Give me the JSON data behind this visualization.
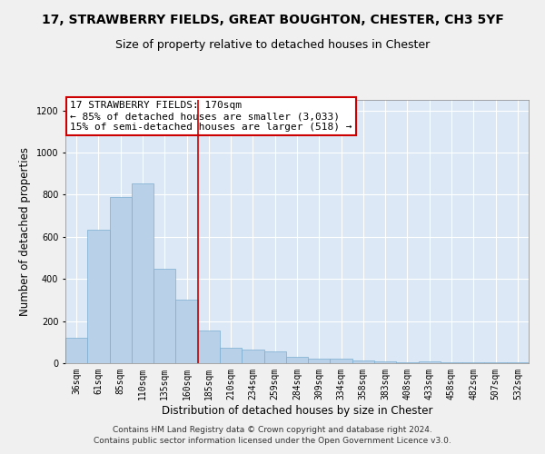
{
  "title": "17, STRAWBERRY FIELDS, GREAT BOUGHTON, CHESTER, CH3 5YF",
  "subtitle": "Size of property relative to detached houses in Chester",
  "xlabel": "Distribution of detached houses by size in Chester",
  "ylabel": "Number of detached properties",
  "footnote": "Contains HM Land Registry data © Crown copyright and database right 2024.\nContains public sector information licensed under the Open Government Licence v3.0.",
  "bar_color": "#b8d0e8",
  "bar_edge_color": "#7aaed0",
  "background_color": "#dce8f5",
  "grid_color": "#ffffff",
  "annotation_box_color": "#ffffff",
  "annotation_border_color": "#cc0000",
  "vline_color": "#cc0000",
  "fig_background": "#f0f0f0",
  "bins": [
    "36sqm",
    "61sqm",
    "85sqm",
    "110sqm",
    "135sqm",
    "160sqm",
    "185sqm",
    "210sqm",
    "234sqm",
    "259sqm",
    "284sqm",
    "309sqm",
    "334sqm",
    "358sqm",
    "383sqm",
    "408sqm",
    "433sqm",
    "458sqm",
    "482sqm",
    "507sqm",
    "532sqm"
  ],
  "values": [
    120,
    635,
    790,
    855,
    450,
    300,
    155,
    75,
    65,
    55,
    30,
    20,
    20,
    15,
    8,
    5,
    8,
    5,
    5,
    3,
    3
  ],
  "property_label": "17 STRAWBERRY FIELDS: 170sqm",
  "pct_smaller": "85% of detached houses are smaller (3,033)",
  "pct_larger": "15% of semi-detached houses are larger (518)",
  "vline_pos": 5.5,
  "ylim": [
    0,
    1250
  ],
  "yticks": [
    0,
    200,
    400,
    600,
    800,
    1000,
    1200
  ],
  "title_fontsize": 10,
  "subtitle_fontsize": 9,
  "annot_fontsize": 8,
  "xlabel_fontsize": 8.5,
  "ylabel_fontsize": 8.5,
  "tick_fontsize": 7,
  "footnote_fontsize": 6.5
}
